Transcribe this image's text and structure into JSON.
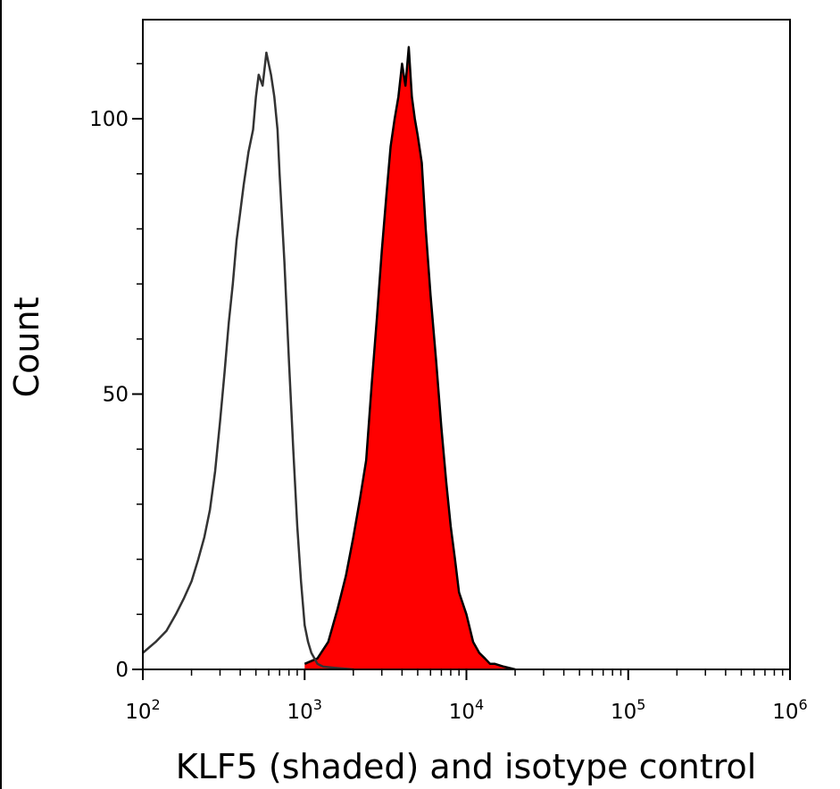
{
  "chart_data": {
    "type": "area",
    "xlabel": "KLF5 (shaded) and isotype control",
    "ylabel": "Count",
    "xscale": "log",
    "xlim": [
      100,
      1000000
    ],
    "ylim": [
      0,
      118
    ],
    "grid": false,
    "x_tick_labels": [
      {
        "base": "10",
        "exp": "2"
      },
      {
        "base": "10",
        "exp": "3"
      },
      {
        "base": "10",
        "exp": "4"
      },
      {
        "base": "10",
        "exp": "5"
      },
      {
        "base": "10",
        "exp": "6"
      }
    ],
    "y_ticks": [
      0,
      50,
      100
    ],
    "y_tick_labels": [
      "0",
      "50",
      "100"
    ],
    "series": [
      {
        "name": "KLF5",
        "style": "shaded",
        "fill_color": "#ff0000",
        "line_color": "#000000",
        "x": [
          1000,
          1200,
          1400,
          1600,
          1800,
          2000,
          2200,
          2400,
          2600,
          2800,
          3000,
          3200,
          3400,
          3600,
          3800,
          4000,
          4200,
          4400,
          4600,
          4800,
          5000,
          5300,
          5600,
          6000,
          6500,
          7000,
          7500,
          8000,
          8500,
          9000,
          10000,
          11000,
          12000,
          13000,
          14000,
          15000,
          17000,
          20000
        ],
        "y": [
          1,
          2,
          5,
          11,
          17,
          24,
          31,
          38,
          52,
          64,
          76,
          86,
          95,
          100,
          104,
          110,
          106,
          113,
          104,
          100,
          97,
          92,
          80,
          68,
          56,
          44,
          34,
          26,
          20,
          14,
          10,
          5,
          3,
          2,
          1,
          1,
          0.5,
          0
        ]
      },
      {
        "name": "isotype control",
        "style": "line",
        "line_color": "#333333",
        "x": [
          100,
          120,
          140,
          160,
          180,
          200,
          220,
          240,
          260,
          280,
          300,
          320,
          340,
          360,
          380,
          400,
          420,
          450,
          480,
          500,
          520,
          550,
          580,
          600,
          620,
          650,
          680,
          700,
          750,
          800,
          850,
          900,
          950,
          1000,
          1050,
          1100,
          1150,
          1200,
          1300,
          1500,
          2000
        ],
        "y": [
          3,
          5,
          7,
          10,
          13,
          16,
          20,
          24,
          29,
          36,
          45,
          54,
          63,
          70,
          78,
          83,
          88,
          94,
          98,
          104,
          108,
          106,
          112,
          110,
          108,
          104,
          98,
          90,
          74,
          56,
          40,
          26,
          16,
          8,
          5,
          3,
          2,
          1,
          0.5,
          0.3,
          0
        ]
      }
    ]
  }
}
